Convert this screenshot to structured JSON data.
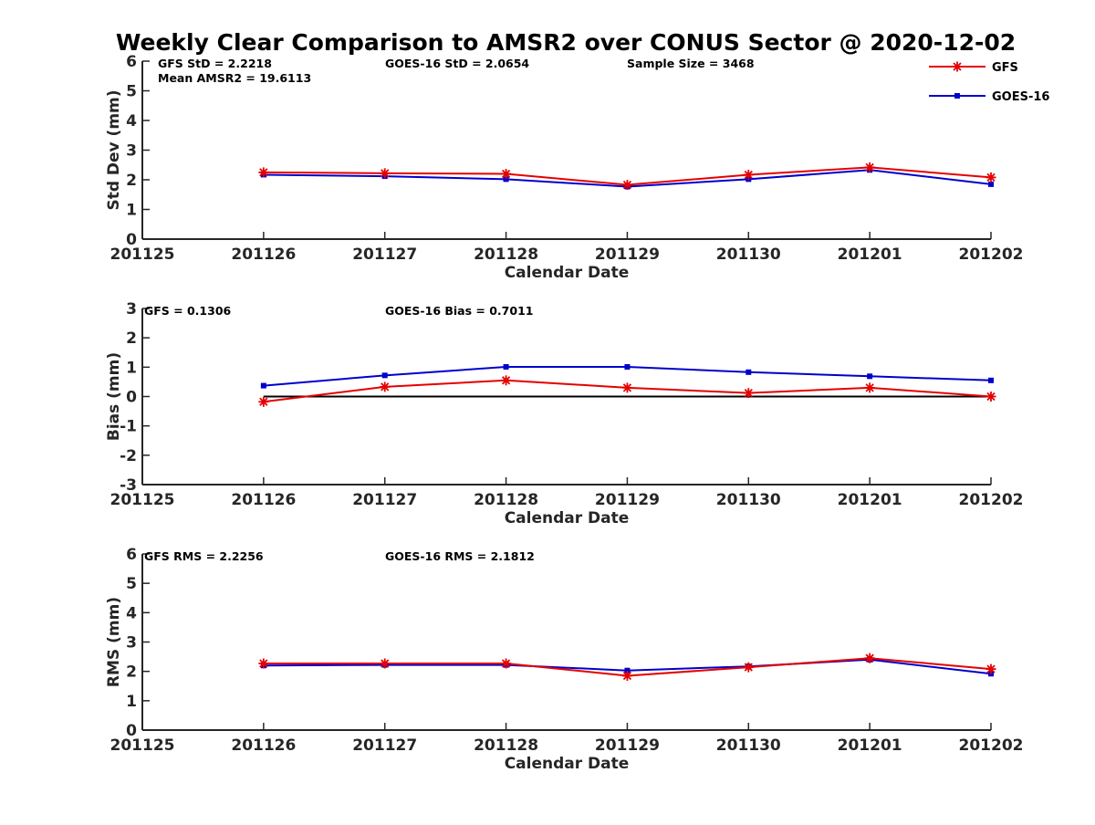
{
  "title": "Weekly Clear Comparison to AMSR2 over CONUS Sector @ 2020-12-02",
  "colors": {
    "gfs": "#e60000",
    "goes": "#0000cc",
    "axis": "#262626",
    "zero_line": "#000000"
  },
  "legend": {
    "placement": "top-right",
    "items": [
      {
        "label": "GFS",
        "color": "#e60000",
        "marker": "asterisk"
      },
      {
        "label": "GOES-16",
        "color": "#0000cc",
        "marker": "square"
      }
    ]
  },
  "chart_data": [
    {
      "type": "line",
      "ylabel": "Std Dev (mm)",
      "xlabel": "Calendar Date",
      "ylim": [
        0,
        6
      ],
      "yticks": [
        0,
        1,
        2,
        3,
        4,
        5,
        6
      ],
      "categories": [
        "201125",
        "201126",
        "201127",
        "201128",
        "201129",
        "201130",
        "201201",
        "201202"
      ],
      "zero_line": false,
      "annotations": [
        {
          "text": "GFS StD = 2.2218"
        },
        {
          "text": "Mean AMSR2 = 19.6113"
        },
        {
          "text": "GOES-16 StD = 2.0654"
        },
        {
          "text": "Sample Size = 3468"
        }
      ],
      "series": [
        {
          "name": "GFS",
          "color": "#e60000",
          "marker": "asterisk",
          "values": [
            null,
            2.25,
            2.22,
            2.2,
            1.83,
            2.17,
            2.42,
            2.08
          ]
        },
        {
          "name": "GOES-16",
          "color": "#0000cc",
          "marker": "square",
          "values": [
            null,
            2.17,
            2.12,
            2.02,
            1.77,
            2.02,
            2.33,
            1.85
          ]
        }
      ]
    },
    {
      "type": "line",
      "ylabel": "Bias (mm)",
      "xlabel": "Calendar Date",
      "ylim": [
        -3,
        3
      ],
      "yticks": [
        -3,
        -2,
        -1,
        0,
        1,
        2,
        3
      ],
      "categories": [
        "201125",
        "201126",
        "201127",
        "201128",
        "201129",
        "201130",
        "201201",
        "201202"
      ],
      "zero_line": true,
      "annotations": [
        {
          "text": "GFS = 0.1306"
        },
        {
          "text": "GOES-16 Bias  = 0.7011"
        }
      ],
      "series": [
        {
          "name": "GFS",
          "color": "#e60000",
          "marker": "asterisk",
          "values": [
            null,
            -0.18,
            0.33,
            0.55,
            0.3,
            0.12,
            0.3,
            0.0
          ]
        },
        {
          "name": "GOES-16",
          "color": "#0000cc",
          "marker": "square",
          "values": [
            null,
            0.37,
            0.72,
            1.01,
            1.01,
            0.83,
            0.69,
            0.55
          ]
        }
      ]
    },
    {
      "type": "line",
      "ylabel": "RMS (mm)",
      "xlabel": "Calendar Date",
      "ylim": [
        0,
        6
      ],
      "yticks": [
        0,
        1,
        2,
        3,
        4,
        5,
        6
      ],
      "categories": [
        "201125",
        "201126",
        "201127",
        "201128",
        "201129",
        "201130",
        "201201",
        "201202"
      ],
      "zero_line": false,
      "annotations": [
        {
          "text": "GFS RMS = 2.2256"
        },
        {
          "text": "GOES-16 RMS = 2.1812"
        }
      ],
      "series": [
        {
          "name": "GFS",
          "color": "#e60000",
          "marker": "asterisk",
          "values": [
            null,
            2.27,
            2.27,
            2.27,
            1.85,
            2.14,
            2.45,
            2.08
          ]
        },
        {
          "name": "GOES-16",
          "color": "#0000cc",
          "marker": "square",
          "values": [
            null,
            2.2,
            2.22,
            2.22,
            2.03,
            2.17,
            2.4,
            1.92
          ]
        }
      ]
    }
  ]
}
